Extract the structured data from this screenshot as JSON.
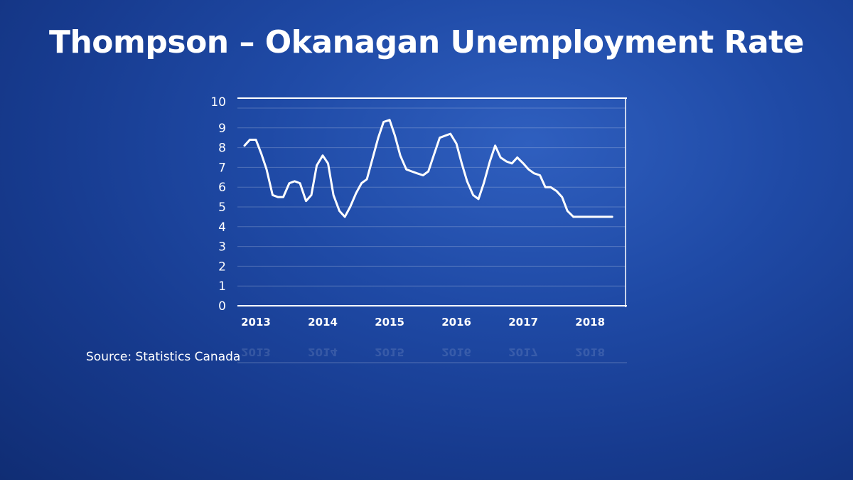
{
  "title": "Thompson – Okanagan Unemployment Rate",
  "source": "Source: Statistics Canada",
  "chart_data": {
    "type": "line",
    "title": "Thompson – Okanagan Unemployment Rate",
    "xlabel": "",
    "ylabel": "",
    "ylim": [
      0,
      10
    ],
    "yticks": [
      "0",
      "1",
      "2",
      "3",
      "4",
      "5",
      "6",
      "7",
      "8",
      "9",
      "10"
    ],
    "xlim": [
      2013,
      2018.7
    ],
    "xticks": [
      {
        "label": "2013",
        "value": 2013.0
      },
      {
        "label": "2014",
        "value": 2014.0
      },
      {
        "label": "2015",
        "value": 2015.0
      },
      {
        "label": "2016",
        "value": 2016.0
      },
      {
        "label": "2017",
        "value": 2017.0
      },
      {
        "label": "2018",
        "value": 2018.0
      }
    ],
    "grid": true,
    "line_color": "#ffffff",
    "series": [
      {
        "x": [
          2013.0,
          2013.08,
          2013.17,
          2013.25,
          2013.33,
          2013.42,
          2013.5,
          2013.58,
          2013.67,
          2013.75,
          2013.83,
          2013.92,
          2014.0,
          2014.08,
          2014.17,
          2014.25,
          2014.33,
          2014.42,
          2014.5,
          2014.58,
          2014.67,
          2014.75,
          2014.83,
          2014.92,
          2015.0,
          2015.08,
          2015.17,
          2015.25,
          2015.33,
          2015.42,
          2015.5,
          2015.58,
          2015.67,
          2015.75,
          2015.83,
          2015.92,
          2016.0,
          2016.08,
          2016.17,
          2016.25,
          2016.33,
          2016.42,
          2016.5,
          2016.58,
          2016.67,
          2016.75,
          2016.83,
          2016.92,
          2017.0,
          2017.08,
          2017.17,
          2017.25,
          2017.33,
          2017.42,
          2017.5,
          2017.58,
          2017.67,
          2017.75,
          2017.83,
          2017.92,
          2018.0,
          2018.08,
          2018.17,
          2018.25,
          2018.33,
          2018.42,
          2018.5
        ],
        "values": [
          8.1,
          8.4,
          8.4,
          7.7,
          6.9,
          5.6,
          5.5,
          5.5,
          6.2,
          6.3,
          6.2,
          5.3,
          5.6,
          7.1,
          7.6,
          7.2,
          5.6,
          4.8,
          4.5,
          5.0,
          5.7,
          6.2,
          6.4,
          7.5,
          8.5,
          9.3,
          9.4,
          8.6,
          7.6,
          6.9,
          6.8,
          6.7,
          6.6,
          6.8,
          7.6,
          8.5,
          8.6,
          8.7,
          8.2,
          7.2,
          6.3,
          5.6,
          5.4,
          6.2,
          7.3,
          8.1,
          7.5,
          7.3,
          7.2,
          7.5,
          7.2,
          6.9,
          6.7,
          6.6,
          6.0,
          6.0,
          5.8,
          5.5,
          4.8,
          4.5,
          4.5,
          4.5,
          4.5,
          4.5,
          4.5,
          4.5,
          4.5
        ]
      }
    ]
  }
}
